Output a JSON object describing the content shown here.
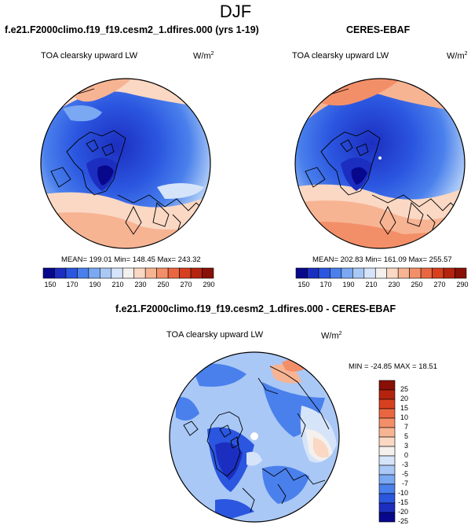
{
  "title": "DJF",
  "panels": [
    {
      "title": "f.e21.F2000climo.f19_f19.cesm2_1.dfires.000 (yrs 1-19)",
      "variable": "TOA clearsky upward LW",
      "units_base": "W/m",
      "units_exp": "2",
      "stats": "MEAN= 199.01  Min= 148.45  Max= 243.32"
    },
    {
      "title": "CERES-EBAF",
      "variable": "TOA clearsky upward LW",
      "units_base": "W/m",
      "units_exp": "2",
      "stats": "MEAN= 202.83  Min= 161.09  Max= 255.57"
    },
    {
      "title": "f.e21.F2000climo.f19_f19.cesm2_1.dfires.000 - CERES-EBAF",
      "variable": "TOA clearsky upward LW",
      "units_base": "W/m",
      "units_exp": "2",
      "stats": "MIN = -24.85 MAX =  18.51"
    }
  ],
  "colorbar_abs": {
    "ticks": [
      "150",
      "170",
      "190",
      "210",
      "230",
      "250",
      "270",
      "290"
    ],
    "colors": [
      "#08088c",
      "#1c2ec0",
      "#2b56e0",
      "#4a80ec",
      "#7ba8f2",
      "#a9c8f6",
      "#d6e4fa",
      "#f4f0ee",
      "#fad8c4",
      "#f7b493",
      "#f38f68",
      "#ea6640",
      "#d7401f",
      "#b4230e",
      "#881006"
    ]
  },
  "colorbar_diff": {
    "ticks": [
      "25",
      "20",
      "15",
      "10",
      "7",
      "5",
      "3",
      "0",
      "-3",
      "-5",
      "-7",
      "-10",
      "-15",
      "-20",
      "-25"
    ],
    "colors": [
      "#881006",
      "#b4230e",
      "#d7401f",
      "#ea6640",
      "#f38f68",
      "#f7b493",
      "#fad8c4",
      "#f4f0ee",
      "#d6e4fa",
      "#a9c8f6",
      "#7ba8f2",
      "#4a80ec",
      "#2b56e0",
      "#1c2ec0",
      "#08088c"
    ]
  },
  "chart_data": [
    {
      "type": "heatmap",
      "projection": "polar-stereographic-north",
      "title": "f.e21.F2000climo.f19_f19.cesm2_1.dfires.000 (yrs 1-19)",
      "variable": "TOA clearsky upward LW",
      "units": "W/m2",
      "mean": 199.01,
      "min": 148.45,
      "max": 243.32,
      "colorbar_levels": [
        150,
        170,
        190,
        210,
        230,
        250,
        270,
        290
      ]
    },
    {
      "type": "heatmap",
      "projection": "polar-stereographic-north",
      "title": "CERES-EBAF",
      "variable": "TOA clearsky upward LW",
      "units": "W/m2",
      "mean": 202.83,
      "min": 161.09,
      "max": 255.57,
      "colorbar_levels": [
        150,
        170,
        190,
        210,
        230,
        250,
        270,
        290
      ]
    },
    {
      "type": "heatmap",
      "projection": "polar-stereographic-north",
      "title": "f.e21.F2000climo.f19_f19.cesm2_1.dfires.000 - CERES-EBAF",
      "variable": "TOA clearsky upward LW",
      "units": "W/m2",
      "min": -24.85,
      "max": 18.51,
      "colorbar_levels": [
        -25,
        -20,
        -15,
        -10,
        -7,
        -5,
        -3,
        0,
        3,
        5,
        7,
        10,
        15,
        20,
        25
      ]
    }
  ]
}
